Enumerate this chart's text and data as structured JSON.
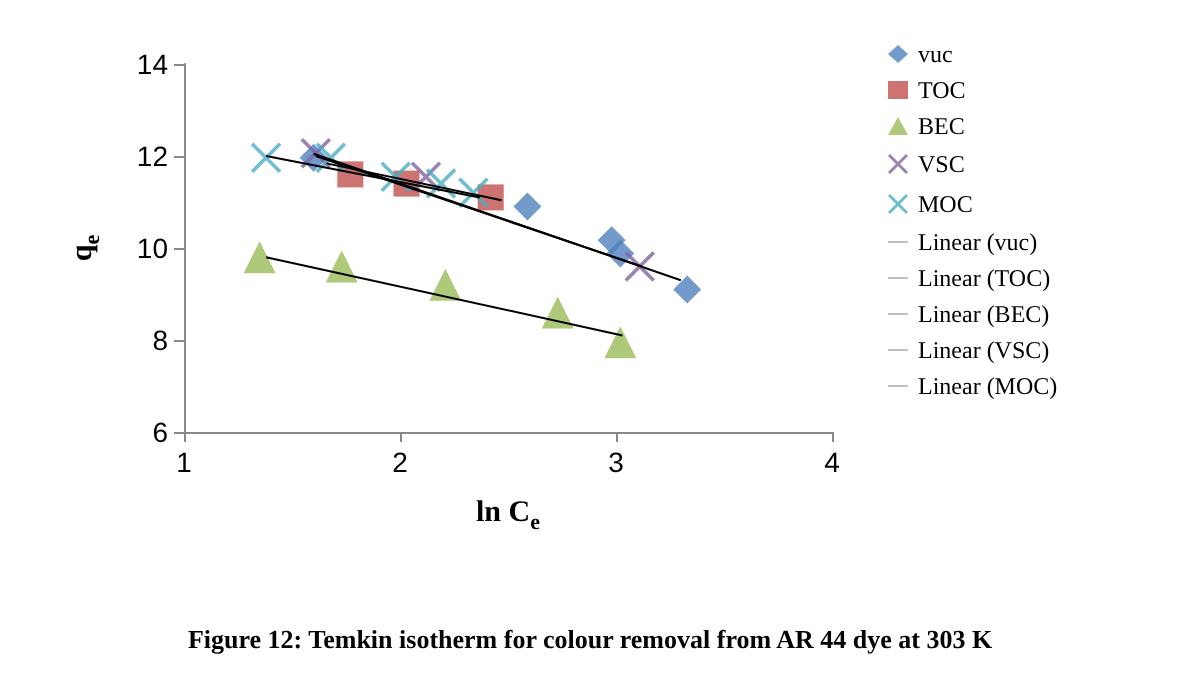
{
  "chart_data": {
    "type": "scatter",
    "xlabel": "ln C$_{e}$",
    "ylabel": "q$_{e}$",
    "xlim": [
      1,
      4
    ],
    "xticks": [
      1,
      2,
      3,
      4
    ],
    "ylim": [
      6,
      14
    ],
    "yticks": [
      6,
      8,
      10,
      12,
      14
    ],
    "grid": false,
    "legend": "right",
    "annotations": [
      "Figure 12: Temkin isotherm for colour removal from AR 44 dye at 303 K"
    ],
    "series": [
      {
        "name": "vuc",
        "marker": "diamond",
        "color": "#4f81bd",
        "x": [
          1.6,
          2.59,
          2.98,
          3.02,
          3.33
        ],
        "values": [
          11.96,
          10.9,
          10.17,
          9.88,
          9.1
        ]
      },
      {
        "name": "TOC",
        "marker": "square",
        "color": "#c0504d",
        "x": [
          1.77,
          2.03,
          2.42
        ],
        "values": [
          11.6,
          11.4,
          11.1
        ]
      },
      {
        "name": "BEC",
        "marker": "triangle",
        "color": "#9bbb59",
        "x": [
          1.35,
          1.73,
          2.21,
          2.73,
          3.02
        ],
        "values": [
          9.8,
          9.6,
          9.2,
          8.6,
          7.95
        ]
      },
      {
        "name": "VSC",
        "marker": "cross",
        "color": "#8064a2",
        "x": [
          1.61,
          2.12,
          3.11
        ],
        "values": [
          12.06,
          11.55,
          9.6
        ]
      },
      {
        "name": "MOC",
        "marker": "cross",
        "color": "#4bacc6",
        "x": [
          1.38,
          1.68,
          1.98,
          2.19,
          2.34
        ],
        "values": [
          11.96,
          11.96,
          11.55,
          11.4,
          11.2
        ]
      },
      {
        "name": "Linear (vuc)",
        "type": "line",
        "marker": "none",
        "color": "#000000",
        "x": [
          1.6,
          3.3
        ],
        "values": [
          12.05,
          9.3
        ]
      },
      {
        "name": "Linear (TOC)",
        "type": "line",
        "marker": "none",
        "color": "#000000",
        "x": [
          1.66,
          2.47
        ],
        "values": [
          11.84,
          11.04
        ]
      },
      {
        "name": "Linear (BEC)",
        "type": "line",
        "marker": "none",
        "color": "#000000",
        "x": [
          1.38,
          3.03
        ],
        "values": [
          9.8,
          8.1
        ]
      },
      {
        "name": "Linear (VSC)",
        "type": "line",
        "marker": "none",
        "color": "#000000",
        "x": [
          1.61,
          3.12
        ],
        "values": [
          12.0,
          9.6
        ]
      },
      {
        "name": "Linear (MOC)",
        "type": "line",
        "marker": "none",
        "color": "#000000",
        "x": [
          1.38,
          2.37
        ],
        "values": [
          12.0,
          11.1
        ]
      }
    ]
  }
}
